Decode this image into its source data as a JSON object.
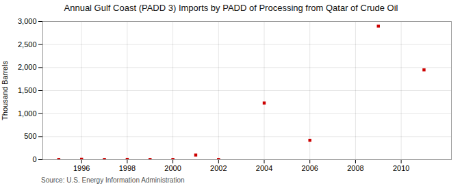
{
  "chart_data": {
    "type": "scatter",
    "title": "Annual Gulf Coast (PADD 3) Imports by PADD of Processing from Qatar of Crude Oil",
    "ylabel": "Thousand Barrels",
    "annotation": "Source: U.S. Energy Information Administration",
    "x": [
      1995,
      1996,
      1997,
      1998,
      1999,
      2000,
      2001,
      2002,
      2004,
      2006,
      2009,
      2011
    ],
    "values": [
      3,
      8,
      3,
      5,
      3,
      3,
      100,
      3,
      1230,
      420,
      2900,
      1950
    ],
    "color": "#cc0000",
    "marker": "square",
    "xlim": [
      1994.3,
      2012.2
    ],
    "ylim": [
      0,
      3000
    ],
    "xticks": [
      1996,
      1998,
      2000,
      2002,
      2004,
      2006,
      2008,
      2010
    ],
    "yticks": [
      0,
      500,
      {
        "value": 1000,
        "label": "1,000"
      },
      {
        "value": 1500,
        "label": "1,500"
      },
      {
        "value": 2000,
        "label": "2,000"
      },
      {
        "value": 2500,
        "label": "2,500"
      },
      {
        "value": 3000,
        "label": "3,000"
      }
    ],
    "grid": true
  }
}
